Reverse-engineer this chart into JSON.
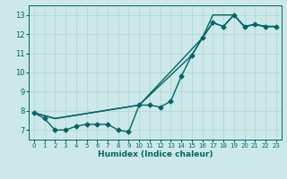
{
  "xlabel": "Humidex (Indice chaleur)",
  "ylabel": "",
  "bg_color": "#cce8e8",
  "grid_color": "#b0d4d4",
  "line_color": "#006666",
  "xlim": [
    -0.5,
    23.5
  ],
  "ylim": [
    6.5,
    13.5
  ],
  "xticks": [
    0,
    1,
    2,
    3,
    4,
    5,
    6,
    7,
    8,
    9,
    10,
    11,
    12,
    13,
    14,
    15,
    16,
    17,
    18,
    19,
    20,
    21,
    22,
    23
  ],
  "yticks": [
    7,
    8,
    9,
    10,
    11,
    12,
    13
  ],
  "line1_x": [
    0,
    1,
    2,
    3,
    4,
    5,
    6,
    7,
    8,
    9,
    10,
    11,
    12,
    13,
    14,
    15,
    16,
    17,
    18,
    19,
    20,
    21,
    22,
    23
  ],
  "line1_y": [
    7.9,
    7.6,
    7.0,
    7.0,
    7.2,
    7.3,
    7.3,
    7.3,
    7.0,
    6.9,
    8.3,
    8.3,
    8.2,
    8.5,
    9.8,
    10.9,
    11.8,
    12.6,
    12.4,
    13.0,
    12.4,
    12.5,
    12.4,
    12.4
  ],
  "line2_x": [
    0,
    2,
    10,
    16,
    17,
    19,
    20,
    21,
    22,
    23
  ],
  "line2_y": [
    7.9,
    7.6,
    8.3,
    11.8,
    13.0,
    13.0,
    12.4,
    12.5,
    12.4,
    12.4
  ],
  "line3_x": [
    0,
    2,
    10,
    15,
    16,
    17,
    18,
    19,
    20,
    21,
    22,
    23
  ],
  "line3_y": [
    7.9,
    7.6,
    8.3,
    10.9,
    11.8,
    12.6,
    12.4,
    13.0,
    12.4,
    12.5,
    12.4,
    12.4
  ]
}
